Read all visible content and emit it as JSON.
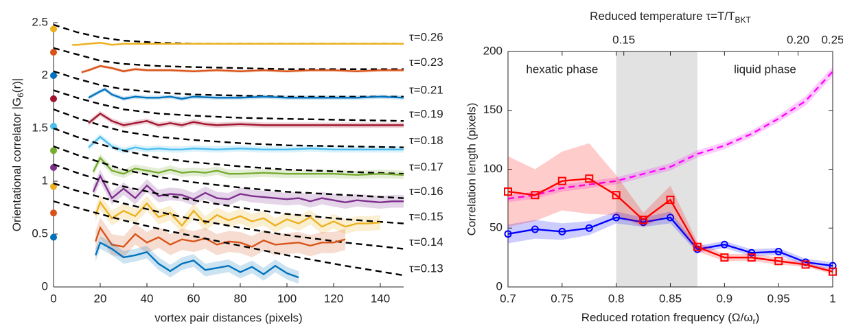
{
  "chart_data": [
    {
      "type": "line",
      "xlabel": "vortex pair distances (pixels)",
      "ylabel": [
        "Orientational correlator |G",
        "6",
        "(r)|"
      ],
      "xlim": [
        0,
        150
      ],
      "ylim": [
        0,
        2.5
      ],
      "xticks": [
        0,
        20,
        40,
        60,
        80,
        100,
        120,
        140
      ],
      "yticks": [
        0,
        0.5,
        1,
        1.5,
        2,
        2.5
      ],
      "box": false,
      "fit_x": [
        0,
        10,
        20,
        30,
        45,
        60,
        80,
        100,
        125,
        150
      ],
      "series": [
        {
          "name": "τ=0.26",
          "color": "#EDB120",
          "intercept": 2.44,
          "error": 0.01,
          "x": [
            8,
            10,
            15,
            20,
            25,
            30,
            40,
            50,
            60,
            70,
            80,
            90,
            100,
            110,
            120,
            130,
            140,
            150
          ],
          "values": [
            2.29,
            2.29,
            2.3,
            2.31,
            2.29,
            2.3,
            2.3,
            2.3,
            2.3,
            2.3,
            2.3,
            2.3,
            2.3,
            2.3,
            2.3,
            2.3,
            2.3,
            2.3
          ],
          "fit": [
            2.48,
            2.41,
            2.36,
            2.33,
            2.31,
            2.3,
            2.3,
            2.3,
            2.3,
            2.3
          ]
        },
        {
          "name": "τ=0.23",
          "color": "#D95319",
          "intercept": 2.22,
          "error": 0.015,
          "x": [
            12,
            15,
            20,
            25,
            30,
            35,
            40,
            50,
            60,
            70,
            80,
            90,
            100,
            110,
            120,
            130,
            140,
            150
          ],
          "values": [
            2.03,
            2.05,
            2.09,
            2.07,
            2.04,
            2.06,
            2.05,
            2.05,
            2.04,
            2.05,
            2.04,
            2.05,
            2.04,
            2.05,
            2.05,
            2.04,
            2.05,
            2.05
          ],
          "fit": [
            2.26,
            2.2,
            2.14,
            2.11,
            2.09,
            2.08,
            2.07,
            2.06,
            2.06,
            2.06
          ]
        },
        {
          "name": "τ=0.21",
          "color": "#0072BD",
          "intercept": 2.0,
          "error": 0.02,
          "x": [
            15,
            20,
            22,
            25,
            30,
            35,
            40,
            45,
            50,
            55,
            60,
            70,
            80,
            90,
            100,
            110,
            120,
            130,
            140,
            150
          ],
          "values": [
            1.79,
            1.85,
            1.87,
            1.82,
            1.78,
            1.8,
            1.79,
            1.79,
            1.8,
            1.78,
            1.8,
            1.79,
            1.79,
            1.8,
            1.79,
            1.79,
            1.79,
            1.79,
            1.8,
            1.79
          ],
          "fit": [
            2.04,
            1.97,
            1.91,
            1.87,
            1.84,
            1.82,
            1.81,
            1.8,
            1.8,
            1.8
          ]
        },
        {
          "name": "τ=0.19",
          "color": "#A2142F",
          "intercept": 1.78,
          "error": 0.025,
          "x": [
            15,
            20,
            25,
            30,
            35,
            40,
            45,
            50,
            55,
            60,
            65,
            70,
            80,
            90,
            100,
            110,
            120,
            130,
            140,
            150
          ],
          "values": [
            1.55,
            1.64,
            1.57,
            1.53,
            1.55,
            1.57,
            1.53,
            1.55,
            1.53,
            1.56,
            1.54,
            1.53,
            1.54,
            1.53,
            1.53,
            1.53,
            1.53,
            1.53,
            1.53,
            1.53
          ],
          "fit": [
            1.86,
            1.79,
            1.73,
            1.68,
            1.64,
            1.62,
            1.6,
            1.59,
            1.58,
            1.57
          ]
        },
        {
          "name": "τ=0.18",
          "color": "#4DBEEE",
          "intercept": 1.52,
          "error": 0.03,
          "x": [
            15,
            20,
            25,
            30,
            35,
            40,
            45,
            50,
            55,
            60,
            70,
            80,
            90,
            100,
            110,
            120,
            130,
            140,
            150
          ],
          "values": [
            1.32,
            1.42,
            1.33,
            1.29,
            1.32,
            1.3,
            1.31,
            1.3,
            1.3,
            1.31,
            1.3,
            1.31,
            1.3,
            1.3,
            1.31,
            1.3,
            1.3,
            1.3,
            1.3
          ],
          "fit": [
            1.68,
            1.6,
            1.53,
            1.47,
            1.42,
            1.39,
            1.36,
            1.34,
            1.33,
            1.32
          ]
        },
        {
          "name": "τ=0.17",
          "color": "#77AC30",
          "intercept": 1.29,
          "error": 0.04,
          "x": [
            17,
            20,
            25,
            30,
            35,
            40,
            45,
            50,
            55,
            60,
            65,
            70,
            75,
            80,
            90,
            100,
            110,
            120,
            130,
            140,
            150
          ],
          "values": [
            1.09,
            1.22,
            1.1,
            1.07,
            1.12,
            1.1,
            1.08,
            1.11,
            1.08,
            1.09,
            1.08,
            1.1,
            1.07,
            1.07,
            1.08,
            1.07,
            1.07,
            1.07,
            1.06,
            1.07,
            1.06
          ],
          "fit": [
            1.5,
            1.42,
            1.35,
            1.29,
            1.22,
            1.18,
            1.14,
            1.11,
            1.09,
            1.07
          ]
        },
        {
          "name": "τ=0.16",
          "color": "#7E2F8E",
          "intercept": 1.13,
          "error": 0.06,
          "x": [
            17,
            20,
            25,
            30,
            35,
            40,
            45,
            50,
            55,
            60,
            65,
            70,
            75,
            80,
            85,
            90,
            95,
            100,
            105,
            110,
            115,
            120,
            125,
            130,
            135,
            140,
            145,
            150
          ],
          "values": [
            0.9,
            1.05,
            0.84,
            0.93,
            0.84,
            0.96,
            0.86,
            0.88,
            0.87,
            0.83,
            0.89,
            0.84,
            0.83,
            0.88,
            0.86,
            0.85,
            0.84,
            0.83,
            0.84,
            0.81,
            0.84,
            0.82,
            0.8,
            0.82,
            0.81,
            0.8,
            0.81,
            0.81
          ],
          "fit": [
            1.33,
            1.25,
            1.18,
            1.11,
            1.04,
            0.99,
            0.94,
            0.9,
            0.87,
            0.84
          ]
        },
        {
          "name": "τ=0.15",
          "color": "#EDB120",
          "intercept": 0.95,
          "error": 0.07,
          "x": [
            18,
            20,
            25,
            30,
            35,
            40,
            45,
            50,
            55,
            60,
            65,
            70,
            75,
            80,
            85,
            90,
            95,
            100,
            105,
            110,
            115,
            120,
            125,
            130,
            135,
            140
          ],
          "values": [
            0.68,
            0.8,
            0.65,
            0.72,
            0.67,
            0.79,
            0.66,
            0.7,
            0.58,
            0.72,
            0.6,
            0.68,
            0.63,
            0.67,
            0.62,
            0.65,
            0.58,
            0.64,
            0.6,
            0.66,
            0.57,
            0.62,
            0.57,
            0.6,
            0.6,
            0.61
          ],
          "fit": [
            1.16,
            1.08,
            1.01,
            0.95,
            0.88,
            0.82,
            0.75,
            0.69,
            0.64,
            0.6
          ]
        },
        {
          "name": "τ=0.14",
          "color": "#D95319",
          "intercept": 0.7,
          "error": 0.1,
          "x": [
            18,
            20,
            25,
            30,
            35,
            40,
            45,
            50,
            55,
            60,
            65,
            70,
            75,
            80,
            85,
            90,
            95,
            100,
            105,
            110,
            115,
            120,
            125
          ],
          "values": [
            0.43,
            0.56,
            0.4,
            0.38,
            0.5,
            0.42,
            0.47,
            0.4,
            0.45,
            0.43,
            0.46,
            0.4,
            0.43,
            0.42,
            0.38,
            0.44,
            0.4,
            0.41,
            0.42,
            0.39,
            0.42,
            0.42,
            0.45
          ],
          "fit": [
            0.98,
            0.91,
            0.85,
            0.79,
            0.71,
            0.64,
            0.56,
            0.49,
            0.42,
            0.36
          ]
        },
        {
          "name": "τ=0.13",
          "color": "#0072BD",
          "intercept": 0.47,
          "error": 0.06,
          "x": [
            18,
            20,
            25,
            30,
            35,
            40,
            45,
            50,
            55,
            60,
            65,
            70,
            75,
            80,
            85,
            90,
            95,
            100,
            105
          ],
          "values": [
            0.3,
            0.42,
            0.36,
            0.28,
            0.3,
            0.33,
            0.22,
            0.15,
            0.22,
            0.25,
            0.16,
            0.18,
            0.2,
            0.14,
            0.19,
            0.12,
            0.2,
            0.13,
            0.09
          ],
          "fit": [
            0.81,
            0.75,
            0.69,
            0.63,
            0.55,
            0.48,
            0.39,
            0.3,
            0.2,
            0.11
          ]
        }
      ]
    },
    {
      "type": "line",
      "xlabel": [
        "Reduced rotation frequency (Ω/ω",
        "r",
        ")"
      ],
      "ylabel": "Correlation length (pixels)",
      "x2label": [
        "Reduced temperature τ=T/T",
        "BKT"
      ],
      "xlim": [
        0.7,
        1
      ],
      "ylim": [
        0,
        200
      ],
      "xticks": [
        0.7,
        0.75,
        0.8,
        0.85,
        0.9,
        0.95,
        1
      ],
      "yticks": [
        0,
        50,
        100,
        150,
        200
      ],
      "box": true,
      "x2ticks": [
        {
          "value": 0.15,
          "label": "0.15",
          "x": 0.807
        },
        {
          "value": 0.2,
          "label": "0.20",
          "x": 0.968
        },
        {
          "value": 0.25,
          "label": "0.25",
          "x": 1
        }
      ],
      "region": {
        "xlim": [
          0.8,
          0.875
        ],
        "color": "#e2e2e2"
      },
      "annotations": [
        "hexatic phase",
        "liquid phase"
      ],
      "series": [
        {
          "color": "#ff00ff",
          "dashed": true,
          "x": [
            0.7,
            0.725,
            0.75,
            0.775,
            0.8,
            0.825,
            0.85,
            0.875,
            0.9,
            0.925,
            0.95,
            0.975,
            1
          ],
          "values": [
            75,
            78,
            84,
            87,
            90,
            96,
            102,
            113,
            120,
            130,
            143,
            158,
            183
          ],
          "error": [
            3,
            3,
            3,
            3,
            3,
            3,
            3,
            3,
            3,
            3,
            3,
            4,
            4
          ]
        },
        {
          "color": "#0000ff",
          "marker": "circle",
          "x": [
            0.7,
            0.725,
            0.75,
            0.775,
            0.8,
            0.825,
            0.85,
            0.875,
            0.9,
            0.925,
            0.95,
            0.975,
            1
          ],
          "values": [
            45,
            49,
            47,
            50,
            59,
            55,
            59,
            32,
            36,
            29,
            30,
            21,
            18
          ],
          "error": [
            8,
            8,
            7,
            6,
            5,
            4,
            5,
            3,
            3,
            3,
            3,
            3,
            3
          ]
        },
        {
          "color": "#ff0000",
          "marker": "square",
          "x": [
            0.7,
            0.725,
            0.75,
            0.775,
            0.8,
            0.825,
            0.85,
            0.875,
            0.9,
            0.925,
            0.95,
            0.975,
            1
          ],
          "values": [
            81,
            78,
            90,
            92,
            78,
            57,
            74,
            34,
            25,
            25,
            22,
            19,
            13
          ],
          "error": [
            30,
            22,
            25,
            30,
            17,
            6,
            12,
            4,
            3,
            3,
            3,
            2,
            2
          ]
        }
      ]
    }
  ]
}
